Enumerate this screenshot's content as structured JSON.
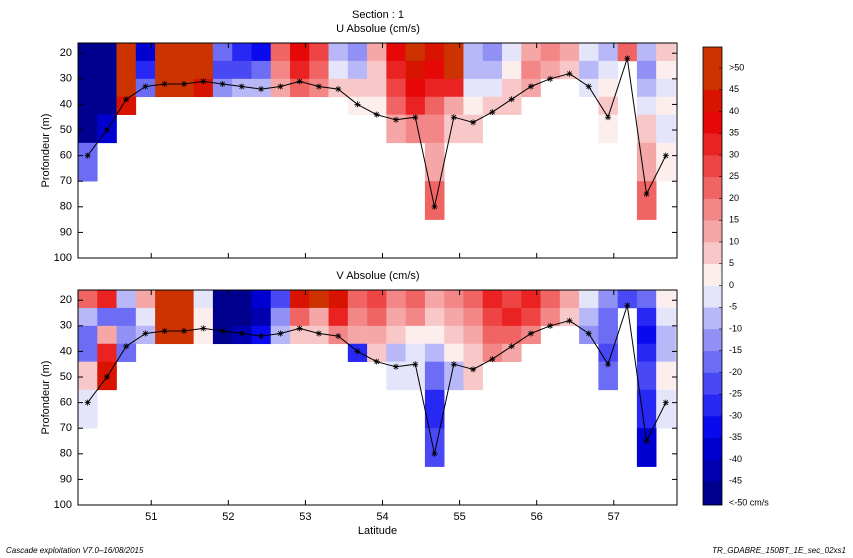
{
  "chart_data": [
    {
      "type": "heatmap",
      "title": "Section : 1",
      "subtitle": "U Absolue (cm/s)",
      "ylabel": "Profondeur (m)",
      "xlim": [
        50.05,
        57.82
      ],
      "xticks": [
        51,
        52,
        53,
        54,
        55,
        56,
        57
      ],
      "xtick_labels": false,
      "ylim": [
        100,
        16
      ],
      "yticks": [
        20,
        30,
        40,
        50,
        60,
        70,
        80,
        90,
        100
      ],
      "x_edges": [
        50.05,
        50.3,
        50.55,
        50.8,
        51.05,
        51.3,
        51.55,
        51.8,
        52.05,
        52.3,
        52.55,
        52.8,
        53.05,
        53.3,
        53.55,
        53.8,
        54.05,
        54.3,
        54.55,
        54.8,
        55.05,
        55.3,
        55.55,
        55.8,
        56.05,
        56.3,
        56.55,
        56.8,
        57.05,
        57.3,
        57.55,
        57.8
      ],
      "depth_edges": [
        16,
        23,
        30,
        37,
        44,
        55,
        70,
        85
      ],
      "values": [
        [
          -50,
          -50,
          50,
          -40,
          50,
          50,
          50,
          -20,
          -30,
          -35,
          20,
          35,
          25,
          -10,
          -15,
          10,
          35,
          45,
          40,
          50,
          -10,
          -15,
          -5,
          10,
          15,
          10,
          -5,
          -10,
          20,
          -10,
          5
        ],
        [
          -50,
          -50,
          50,
          -30,
          50,
          50,
          50,
          -25,
          -25,
          -20,
          15,
          30,
          20,
          -5,
          -10,
          5,
          30,
          40,
          35,
          45,
          -10,
          -10,
          0,
          15,
          10,
          5,
          -10,
          -5,
          null,
          -15,
          0
        ],
        [
          -50,
          -50,
          50,
          -20,
          50,
          50,
          40,
          -15,
          -10,
          -10,
          10,
          20,
          15,
          5,
          5,
          5,
          25,
          35,
          30,
          30,
          -5,
          -5,
          5,
          10,
          null,
          null,
          -5,
          0,
          null,
          -10,
          -5
        ],
        [
          -50,
          -50,
          40,
          null,
          null,
          null,
          null,
          null,
          null,
          null,
          null,
          null,
          null,
          null,
          0,
          0,
          20,
          30,
          20,
          10,
          0,
          5,
          5,
          null,
          null,
          null,
          null,
          5,
          null,
          -5,
          0
        ],
        [
          -50,
          -40,
          null,
          null,
          null,
          null,
          null,
          null,
          null,
          null,
          null,
          null,
          null,
          null,
          null,
          null,
          10,
          15,
          15,
          5,
          5,
          null,
          null,
          null,
          null,
          null,
          null,
          0,
          null,
          5,
          -5
        ],
        [
          -20,
          null,
          null,
          null,
          null,
          null,
          null,
          null,
          null,
          null,
          null,
          null,
          null,
          null,
          null,
          null,
          null,
          null,
          10,
          null,
          null,
          null,
          null,
          null,
          null,
          null,
          null,
          null,
          null,
          10,
          0
        ],
        [
          null,
          null,
          null,
          null,
          null,
          null,
          null,
          null,
          null,
          null,
          null,
          null,
          null,
          null,
          null,
          null,
          null,
          null,
          20,
          null,
          null,
          null,
          null,
          null,
          null,
          null,
          null,
          null,
          null,
          20,
          null
        ]
      ],
      "track": {
        "x": [
          50.175,
          50.425,
          50.675,
          50.925,
          51.175,
          51.425,
          51.675,
          51.925,
          52.175,
          52.425,
          52.675,
          52.925,
          53.175,
          53.425,
          53.675,
          53.925,
          54.175,
          54.425,
          54.675,
          54.925,
          55.175,
          55.425,
          55.675,
          55.925,
          56.175,
          56.425,
          56.675,
          56.925,
          57.175,
          57.425,
          57.675
        ],
        "y": [
          60,
          50,
          38,
          33,
          32,
          32,
          31,
          32,
          33,
          34,
          33,
          31,
          33,
          34,
          40,
          44,
          46,
          45,
          80,
          45,
          47,
          43,
          38,
          33,
          30,
          28,
          33,
          45,
          22,
          75,
          60
        ]
      }
    },
    {
      "type": "heatmap",
      "subtitle": "V Absolue (cm/s)",
      "ylabel": "Profondeur (m)",
      "xlabel": "Latitude",
      "xlim": [
        50.05,
        57.82
      ],
      "xticks": [
        51,
        52,
        53,
        54,
        55,
        56,
        57
      ],
      "xtick_labels": true,
      "ylim": [
        100,
        16
      ],
      "yticks": [
        20,
        30,
        40,
        50,
        60,
        70,
        80,
        90,
        100
      ],
      "x_edges": [
        50.05,
        50.3,
        50.55,
        50.8,
        51.05,
        51.3,
        51.55,
        51.8,
        52.05,
        52.3,
        52.55,
        52.8,
        53.05,
        53.3,
        53.55,
        53.8,
        54.05,
        54.3,
        54.55,
        54.8,
        55.05,
        55.3,
        55.55,
        55.8,
        56.05,
        56.3,
        56.55,
        56.8,
        57.05,
        57.3,
        57.55,
        57.8
      ],
      "depth_edges": [
        16,
        23,
        30,
        37,
        44,
        55,
        70,
        85
      ],
      "values": [
        [
          20,
          30,
          -10,
          10,
          50,
          50,
          -5,
          -50,
          -50,
          -40,
          -25,
          40,
          50,
          40,
          20,
          25,
          15,
          20,
          10,
          15,
          20,
          30,
          25,
          30,
          20,
          10,
          -5,
          -15,
          -25,
          -20,
          0
        ],
        [
          -10,
          -20,
          -20,
          -5,
          50,
          50,
          0,
          -50,
          -50,
          -45,
          -15,
          20,
          10,
          30,
          15,
          20,
          10,
          15,
          5,
          10,
          15,
          25,
          30,
          25,
          15,
          5,
          -10,
          -20,
          null,
          -30,
          -5
        ],
        [
          -20,
          10,
          -15,
          -10,
          50,
          50,
          0,
          -50,
          -45,
          -35,
          -10,
          5,
          5,
          15,
          10,
          10,
          5,
          0,
          0,
          5,
          10,
          20,
          20,
          15,
          null,
          null,
          -15,
          -20,
          null,
          -35,
          -10
        ],
        [
          -20,
          30,
          -20,
          null,
          null,
          null,
          null,
          null,
          null,
          null,
          null,
          null,
          null,
          null,
          -30,
          5,
          -10,
          -5,
          -10,
          0,
          5,
          15,
          10,
          null,
          null,
          null,
          null,
          -25,
          null,
          -30,
          -10
        ],
        [
          5,
          40,
          null,
          null,
          null,
          null,
          null,
          null,
          null,
          null,
          null,
          null,
          null,
          null,
          null,
          null,
          -5,
          -5,
          -20,
          -10,
          5,
          null,
          null,
          null,
          null,
          null,
          null,
          -20,
          null,
          -25,
          0
        ],
        [
          -5,
          null,
          null,
          null,
          null,
          null,
          null,
          null,
          null,
          null,
          null,
          null,
          null,
          null,
          null,
          null,
          null,
          null,
          -30,
          null,
          null,
          null,
          null,
          null,
          null,
          null,
          null,
          null,
          null,
          -30,
          -5
        ],
        [
          null,
          null,
          null,
          null,
          null,
          null,
          null,
          null,
          null,
          null,
          null,
          null,
          null,
          null,
          null,
          null,
          null,
          null,
          -25,
          null,
          null,
          null,
          null,
          null,
          null,
          null,
          null,
          null,
          null,
          -40,
          null
        ]
      ],
      "track": {
        "x": [
          50.175,
          50.425,
          50.675,
          50.925,
          51.175,
          51.425,
          51.675,
          51.925,
          52.175,
          52.425,
          52.675,
          52.925,
          53.175,
          53.425,
          53.675,
          53.925,
          54.175,
          54.425,
          54.675,
          54.925,
          55.175,
          55.425,
          55.675,
          55.925,
          56.175,
          56.425,
          56.675,
          56.925,
          57.175,
          57.425,
          57.675
        ],
        "y": [
          60,
          50,
          38,
          33,
          32,
          32,
          31,
          32,
          33,
          34,
          33,
          31,
          33,
          34,
          40,
          44,
          46,
          45,
          80,
          45,
          47,
          43,
          38,
          33,
          30,
          28,
          33,
          45,
          22,
          75,
          60
        ]
      }
    }
  ],
  "colorbar": {
    "ticks": [
      {
        "value": -50,
        "label": "<-50 cm/s"
      },
      -45,
      -40,
      -35,
      -30,
      -25,
      -20,
      -15,
      -10,
      -5,
      0,
      5,
      10,
      15,
      20,
      25,
      30,
      35,
      40,
      45,
      {
        "value": 50,
        "label": ">50"
      }
    ],
    "colors": [
      "#00008f",
      "#0000b0",
      "#0000d0",
      "#0a0aee",
      "#2828f5",
      "#4848f5",
      "#6c6cf5",
      "#9090f5",
      "#b8b8f8",
      "#e4e4fb",
      "#fdeeee",
      "#f8c8c8",
      "#f5a6a6",
      "#f38686",
      "#f06464",
      "#ee4444",
      "#ea2222",
      "#e60808",
      "#d81400",
      "#cc3300"
    ]
  },
  "footer_left": "Cascade exploitation V7.0–16/08/2015",
  "footer_right": "TR_GDABRE_150BT_1E_sec_02xs1"
}
